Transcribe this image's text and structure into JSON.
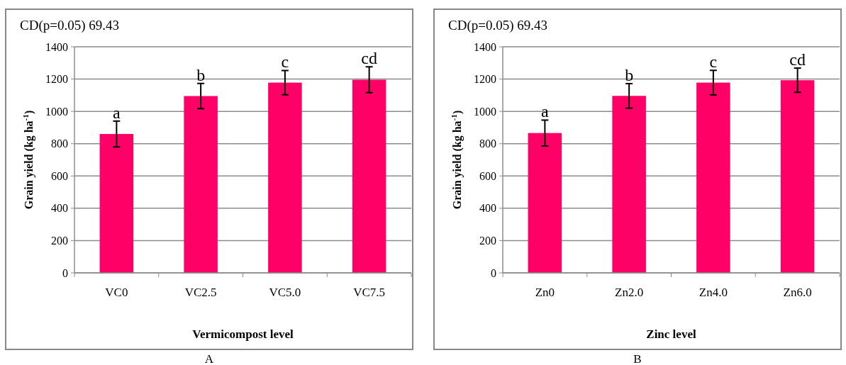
{
  "chart_data": [
    {
      "type": "bar",
      "xlabel": "Vermicompost  level",
      "ylabel": "Grain yield (kg ha$^{-1}$)",
      "categories": [
        "VC0",
        "VC2.5",
        "VC5.0",
        "VC7.5"
      ],
      "values": [
        860,
        1095,
        1178,
        1196
      ],
      "errors": [
        80,
        78,
        75,
        80
      ],
      "color": "#ff0066",
      "ylim": [
        0,
        1400
      ],
      "yticks": [
        0,
        200,
        400,
        600,
        800,
        1000,
        1200,
        1400
      ],
      "grid": "y",
      "annotations": [
        "CD(p=0.05)  69.43",
        "A",
        {
          "text": "a",
          "x": "VC0",
          "y": 940
        },
        {
          "text": "b",
          "x": "VC2.5",
          "y": 1173
        },
        {
          "text": "c",
          "x": "VC5.0",
          "y": 1253
        },
        {
          "text": "cd",
          "x": "VC7.5",
          "y": 1276
        }
      ]
    },
    {
      "type": "bar",
      "xlabel": "Zinc level",
      "ylabel": "Grain yield (kg ha$^{-1}$)",
      "categories": [
        "Zn0",
        "Zn2.0",
        "Zn4.0",
        "Zn6.0"
      ],
      "values": [
        866,
        1096,
        1178,
        1193
      ],
      "errors": [
        80,
        76,
        76,
        75
      ],
      "color": "#ff0066",
      "ylim": [
        0,
        1400
      ],
      "yticks": [
        0,
        200,
        400,
        600,
        800,
        1000,
        1200,
        1400
      ],
      "grid": "y",
      "annotations": [
        "CD(p=0.05)  69.43",
        "B",
        {
          "text": "a",
          "x": "Zn0",
          "y": 946
        },
        {
          "text": "b",
          "x": "Zn2.0",
          "y": 1172
        },
        {
          "text": "c",
          "x": "Zn4.0",
          "y": 1254
        },
        {
          "text": "cd",
          "x": "Zn6.0",
          "y": 1268
        }
      ]
    }
  ]
}
